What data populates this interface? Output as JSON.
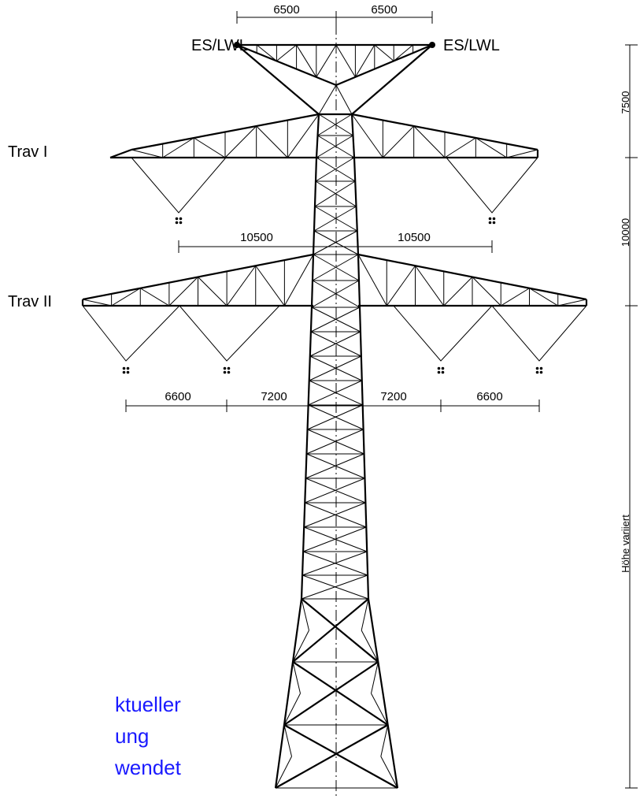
{
  "labels": {
    "earth_wire": [
      "ES/LWL",
      "ES/LWL"
    ],
    "crossarms": [
      "Trav I",
      "Trav II"
    ]
  },
  "dimensions": {
    "top": [
      6500,
      6500
    ],
    "trav_1": [
      10500,
      10500
    ],
    "trav_2": [
      6600,
      7200,
      7200,
      6600
    ],
    "vertical": [
      7500,
      10000,
      "Höhe variiert"
    ]
  },
  "note": [
    "ktueller",
    "ung",
    "wendet"
  ]
}
